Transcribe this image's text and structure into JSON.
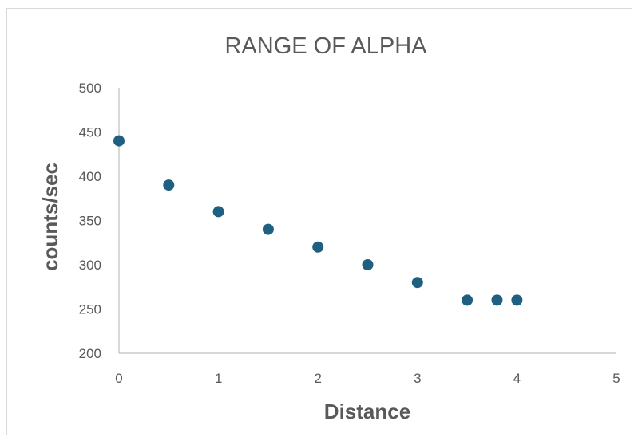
{
  "chart_data": {
    "type": "scatter",
    "title": "RANGE OF ALPHA",
    "xlabel": "Distance",
    "ylabel": "counts/sec",
    "xlim": [
      0,
      5
    ],
    "ylim": [
      200,
      500
    ],
    "x_ticks": [
      "0",
      "1",
      "2",
      "3",
      "4",
      "5"
    ],
    "y_ticks": [
      "200",
      "250",
      "300",
      "350",
      "400",
      "450",
      "500"
    ],
    "grid": false,
    "legend": "none",
    "marker_color": "#1f5f7f",
    "series": [
      {
        "x": [
          0,
          0.5,
          1,
          1.5,
          2,
          2.5,
          3,
          3.5,
          3.8,
          4
        ],
        "y": [
          440,
          390,
          360,
          340,
          320,
          300,
          280,
          260,
          260,
          260
        ]
      }
    ]
  }
}
